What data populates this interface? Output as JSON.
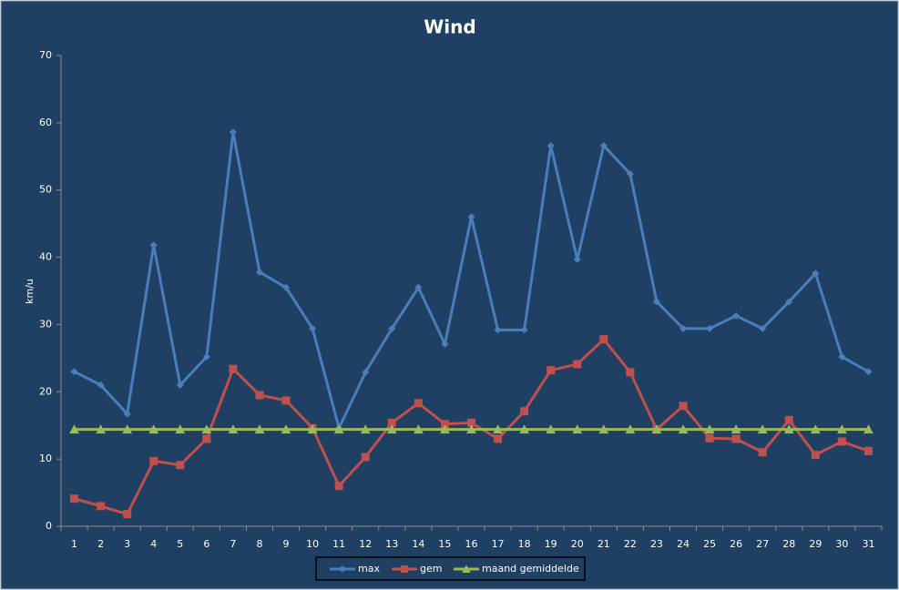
{
  "chart_data": {
    "type": "line",
    "title": "Wind",
    "y_label": "km/u",
    "categories": [
      1,
      2,
      3,
      4,
      5,
      6,
      7,
      8,
      9,
      10,
      11,
      12,
      13,
      14,
      15,
      16,
      17,
      18,
      19,
      20,
      21,
      22,
      23,
      24,
      25,
      26,
      27,
      28,
      29,
      30,
      31
    ],
    "series": [
      {
        "name": "max",
        "color": "#4a7ebb",
        "marker": "diamond",
        "values": [
          23,
          21,
          16.7,
          41.8,
          21,
          25.2,
          58.6,
          37.8,
          35.5,
          29.4,
          14.6,
          22.9,
          29.4,
          35.5,
          27.1,
          46,
          29.2,
          29.2,
          56.6,
          39.7,
          56.6,
          52.4,
          33.4,
          29.4,
          29.4,
          31.3,
          29.4,
          33.4,
          37.6,
          25.2,
          23
        ]
      },
      {
        "name": "gem",
        "color": "#c0504d",
        "marker": "square",
        "values": [
          4.1,
          3,
          1.8,
          9.7,
          9.1,
          13,
          23.4,
          19.5,
          18.7,
          14.6,
          6,
          10.3,
          15.4,
          18.3,
          15.2,
          15.4,
          13,
          17.1,
          23.2,
          24.1,
          27.8,
          22.9,
          14.4,
          17.9,
          13.1,
          13,
          11,
          15.8,
          10.6,
          12.6,
          11.2
        ]
      },
      {
        "name": "maand gemiddelde",
        "color": "#9bbb59",
        "marker": "triangle",
        "values": [
          14.4,
          14.4,
          14.4,
          14.4,
          14.4,
          14.4,
          14.4,
          14.4,
          14.4,
          14.4,
          14.4,
          14.4,
          14.4,
          14.4,
          14.4,
          14.4,
          14.4,
          14.4,
          14.4,
          14.4,
          14.4,
          14.4,
          14.4,
          14.4,
          14.4,
          14.4,
          14.4,
          14.4,
          14.4,
          14.4,
          14.4
        ]
      }
    ],
    "ylim": [
      0,
      70
    ],
    "yticks": [
      0,
      10,
      20,
      30,
      40,
      50,
      60,
      70
    ],
    "grid": false,
    "legend": "bottom"
  }
}
